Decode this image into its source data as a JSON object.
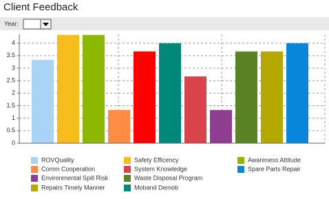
{
  "header": {
    "title": "Client Feedback",
    "filter_label": "Year:"
  },
  "chart_data": {
    "type": "bar",
    "categories": [
      "ROVQuality",
      "Safety Efficency",
      "Awareness Attitude",
      "Comm Cooperation",
      null,
      "Moband Demob",
      "System Knowledge",
      "Environmental Spill Risk",
      "Waste Disposal Program",
      "Repairs Timely Manner",
      "Spare Parts Repair"
    ],
    "values": [
      3.33,
      4.33,
      4.33,
      1.33,
      3.67,
      4.0,
      2.67,
      1.33,
      3.67,
      3.67,
      4.0
    ],
    "colors": [
      "#aad4f7",
      "#f7bd1b",
      "#8cb800",
      "#ff8c42",
      "#ff0000",
      "#00897b",
      "#d9434a",
      "#8e3d91",
      "#5a8423",
      "#b5a800",
      "#0886db"
    ],
    "legend_order": [
      0,
      3,
      7,
      9,
      1,
      6,
      8,
      5,
      2,
      10
    ],
    "ylim": [
      0,
      4.35
    ],
    "yticks": [
      0,
      0.5,
      1,
      1.5,
      2,
      2.5,
      3,
      3.5,
      4
    ],
    "grid": true
  }
}
